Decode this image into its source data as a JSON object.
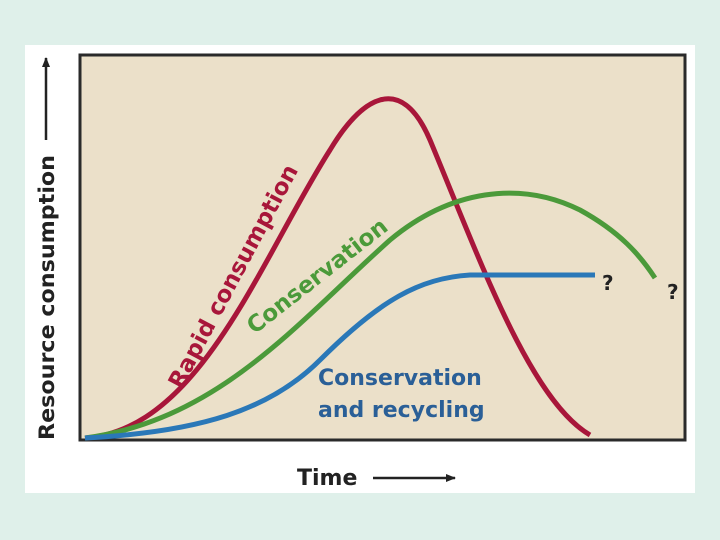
{
  "axes": {
    "y_label": "Resource consumption",
    "x_label": "Time"
  },
  "curves": [
    {
      "label": "Rapid consumption"
    },
    {
      "label": "Conservation"
    },
    {
      "label_lines": [
        "Conservation",
        "and recycling"
      ]
    }
  ],
  "unknown_markers": [
    "?",
    "?"
  ]
}
